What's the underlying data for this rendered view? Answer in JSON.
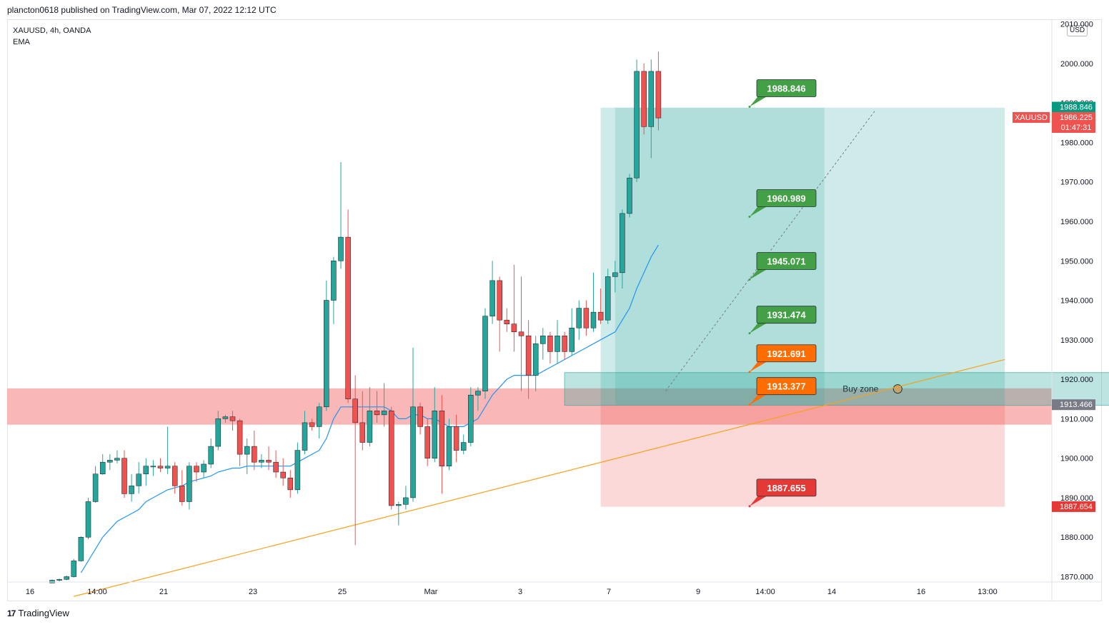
{
  "header": {
    "published": "plancton0618 published on TradingView.com, Mar 07, 2022 12:12 UTC"
  },
  "legend": {
    "symbol": "XAUUSD, 4h, OANDA",
    "indicator": "EMA"
  },
  "currency_button": "USD",
  "footer": {
    "logo": "17",
    "brand": "TradingView"
  },
  "colors": {
    "up": "#26a69a",
    "down": "#ef5350",
    "ema": "#2196f3",
    "trend": "#f7a21b",
    "zone_red": "#f8a5a5",
    "zone_teal": "#26a69a",
    "label_green": "#43a047",
    "label_orange": "#ff6d00",
    "label_red": "#e53935"
  },
  "chart_data": {
    "type": "candlestick",
    "symbol": "XAUUSD",
    "interval": "4h",
    "ylim": [
      1867,
      2010
    ],
    "y_ticks": [
      "1870.000",
      "1880.000",
      "1890.000",
      "1900.000",
      "1910.000",
      "1920.000",
      "1930.000",
      "1940.000",
      "1950.000",
      "1960.000",
      "1970.000",
      "1980.000",
      "1990.000",
      "2000.000",
      "2010.000"
    ],
    "x_ticks": [
      "16",
      "14:00",
      "21",
      "23",
      "25",
      "Mar",
      "3",
      "7",
      "9",
      "14:00",
      "14",
      "16",
      "13:00"
    ],
    "candles": [
      [
        1868.4,
        1869.1,
        1867.5,
        1869.3
      ],
      [
        1869.1,
        1869.3,
        1868.8,
        1869.5
      ],
      [
        1869.3,
        1870.0,
        1869.1,
        1870.3
      ],
      [
        1870.0,
        1874.0,
        1869.8,
        1874.5
      ],
      [
        1874.0,
        1880.0,
        1873.8,
        1880.2
      ],
      [
        1880.0,
        1889.0,
        1879.5,
        1890.0
      ],
      [
        1889.0,
        1896.0,
        1888.7,
        1898.0
      ],
      [
        1896.0,
        1899.0,
        1895.8,
        1901.0
      ],
      [
        1899.0,
        1899.5,
        1897.0,
        1901.0
      ],
      [
        1899.5,
        1900.0,
        1898.7,
        1902.0
      ],
      [
        1900.0,
        1891.0,
        1890.0,
        1902.0
      ],
      [
        1891.0,
        1893.0,
        1889.0,
        1896.0
      ],
      [
        1893.0,
        1896.0,
        1891.0,
        1899.0
      ],
      [
        1896.0,
        1898.0,
        1893.0,
        1900.0
      ],
      [
        1898.0,
        1898.0,
        1895.5,
        1899.5
      ],
      [
        1898.0,
        1897.5,
        1896.5,
        1900.0
      ],
      [
        1897.5,
        1898.0,
        1896.0,
        1908.0
      ],
      [
        1898.0,
        1893.0,
        1891.0,
        1899.0
      ],
      [
        1893.0,
        1889.0,
        1888.0,
        1897.0
      ],
      [
        1889.0,
        1898.0,
        1887.0,
        1899.0
      ],
      [
        1898.0,
        1896.5,
        1894.0,
        1899.0
      ],
      [
        1896.5,
        1898.5,
        1895.0,
        1899.5
      ],
      [
        1898.5,
        1903.0,
        1897.5,
        1905.0
      ],
      [
        1903.0,
        1910.0,
        1902.0,
        1912.0
      ],
      [
        1910.0,
        1910.5,
        1909.0,
        1911.0
      ],
      [
        1910.5,
        1909.5,
        1907.0,
        1912.0
      ],
      [
        1909.5,
        1901.0,
        1898.0,
        1910.0
      ],
      [
        1901.0,
        1903.0,
        1896.0,
        1905.0
      ],
      [
        1903.0,
        1899.0,
        1897.0,
        1907.0
      ],
      [
        1899.0,
        1899.5,
        1897.5,
        1901.0
      ],
      [
        1899.5,
        1899.0,
        1897.0,
        1903.0
      ],
      [
        1899.0,
        1896.5,
        1895.0,
        1902.0
      ],
      [
        1896.5,
        1895.0,
        1893.0,
        1900.0
      ],
      [
        1895.0,
        1892.0,
        1890.0,
        1897.0
      ],
      [
        1892.0,
        1902.0,
        1891.0,
        1904.0
      ],
      [
        1902.0,
        1909.0,
        1901.0,
        1912.0
      ],
      [
        1909.0,
        1908.0,
        1907.0,
        1910.0
      ],
      [
        1908.0,
        1913.0,
        1905.0,
        1914.0
      ],
      [
        1913.0,
        1940.0,
        1912.0,
        1945.0
      ],
      [
        1940.0,
        1950.0,
        1934.0,
        1951.0
      ],
      [
        1950.0,
        1956.0,
        1948.0,
        1975.0
      ],
      [
        1956.0,
        1915.0,
        1914.0,
        1963.0
      ],
      [
        1915.0,
        1909.0,
        1878.0,
        1921.0
      ],
      [
        1909.0,
        1904.0,
        1902.0,
        1917.0
      ],
      [
        1904.0,
        1912.0,
        1903.0,
        1918.0
      ],
      [
        1912.0,
        1911.0,
        1909.0,
        1917.0
      ],
      [
        1911.0,
        1912.0,
        1908.0,
        1919.0
      ],
      [
        1912.0,
        1888.0,
        1887.0,
        1913.0
      ],
      [
        1888.0,
        1888.3,
        1883.0,
        1889.0
      ],
      [
        1888.3,
        1890.0,
        1887.0,
        1893.0
      ],
      [
        1890.0,
        1913.0,
        1889.0,
        1928.0
      ],
      [
        1913.0,
        1908.0,
        1906.0,
        1914.0
      ],
      [
        1908.0,
        1900.0,
        1898.0,
        1910.0
      ],
      [
        1900.0,
        1912.0,
        1899.0,
        1918.0
      ],
      [
        1912.0,
        1898.0,
        1891.0,
        1916.0
      ],
      [
        1898.0,
        1908.0,
        1897.0,
        1910.0
      ],
      [
        1908.0,
        1902.0,
        1899.0,
        1911.0
      ],
      [
        1902.0,
        1904.0,
        1901.0,
        1906.0
      ],
      [
        1904.0,
        1916.0,
        1903.0,
        1918.0
      ],
      [
        1916.0,
        1917.0,
        1912.0,
        1918.0
      ],
      [
        1917.0,
        1936.0,
        1915.0,
        1938.0
      ],
      [
        1936.0,
        1945.0,
        1934.0,
        1950.0
      ],
      [
        1945.0,
        1935.0,
        1927.0,
        1946.0
      ],
      [
        1935.0,
        1934.0,
        1932.0,
        1938.0
      ],
      [
        1934.0,
        1932.0,
        1927.0,
        1949.0
      ],
      [
        1932.0,
        1931.0,
        1917.0,
        1946.0
      ],
      [
        1931.0,
        1921.0,
        1915.0,
        1935.0
      ],
      [
        1921.0,
        1929.0,
        1917.0,
        1931.0
      ],
      [
        1929.0,
        1931.0,
        1925.0,
        1933.0
      ],
      [
        1931.0,
        1927.0,
        1924.0,
        1932.0
      ],
      [
        1927.0,
        1931.0,
        1924.0,
        1935.0
      ],
      [
        1931.0,
        1927.0,
        1925.0,
        1932.0
      ],
      [
        1927.0,
        1933.0,
        1926.0,
        1938.0
      ],
      [
        1933.0,
        1938.0,
        1930.0,
        1940.0
      ],
      [
        1938.0,
        1933.0,
        1931.0,
        1940.0
      ],
      [
        1933.0,
        1937.0,
        1932.0,
        1947.0
      ],
      [
        1937.0,
        1935.0,
        1934.0,
        1943.0
      ],
      [
        1935.0,
        1946.0,
        1934.0,
        1948.0
      ],
      [
        1946.0,
        1947.0,
        1942.0,
        1950.0
      ],
      [
        1947.0,
        1962.0,
        1943.0,
        1963.0
      ],
      [
        1962.0,
        1971.0,
        1961.0,
        1972.0
      ],
      [
        1971.0,
        1998.0,
        1970.0,
        2001.0
      ],
      [
        1998.0,
        1984.0,
        1982.0,
        2000.0
      ],
      [
        1984.0,
        1998.0,
        1976.0,
        2001.0
      ],
      [
        1998.0,
        1986.2,
        1983.0,
        2003.0
      ]
    ],
    "ema_series_name": "EMA",
    "ema_values": [
      1860,
      1862,
      1864,
      1868,
      1871,
      1874,
      1877,
      1880,
      1882,
      1884,
      1885,
      1886,
      1887,
      1889,
      1890,
      1891,
      1892,
      1892.5,
      1893,
      1894,
      1894.5,
      1895,
      1895.5,
      1896.5,
      1897,
      1897.5,
      1897.5,
      1898,
      1898,
      1898,
      1898,
      1898,
      1898,
      1898,
      1899,
      1900,
      1901,
      1902,
      1905,
      1910,
      1913,
      1913,
      1913,
      1913,
      1913,
      1913,
      1913,
      1912,
      1910,
      1910,
      1911,
      1911,
      1910,
      1910,
      1909,
      1908,
      1908,
      1908,
      1909,
      1910,
      1913,
      1916,
      1918,
      1920,
      1921,
      1921,
      1921,
      1921,
      1922,
      1923,
      1924,
      1925,
      1926,
      1927,
      1928,
      1929,
      1930,
      1931,
      1932,
      1935,
      1938,
      1943,
      1947,
      1951,
      1954
    ],
    "trend_line": {
      "from": [
        3,
        1865
      ],
      "to": [
        132,
        1925
      ]
    },
    "projection_line": {
      "from": [
        85,
        1917
      ],
      "to": [
        114,
        1988
      ]
    },
    "zones": [
      {
        "name": "resistance-support",
        "y1": 1908.5,
        "y2": 1917.7
      },
      {
        "name": "buy-zone",
        "label": "Buy zone",
        "y1": 1913.4,
        "y2": 1921.7,
        "x1": 71,
        "x2": 155
      },
      {
        "name": "profit-area",
        "y1": 1913.4,
        "y2": 1988.8,
        "x1": 76,
        "x2": 132
      },
      {
        "name": "loss-area",
        "y1": 1887.7,
        "y2": 1913.4,
        "x1": 76,
        "x2": 132
      }
    ],
    "price_labels": [
      {
        "text": "1988.846",
        "value": 1988.846,
        "color": "green"
      },
      {
        "text": "1960.989",
        "value": 1960.989,
        "color": "green"
      },
      {
        "text": "1945.071",
        "value": 1945.071,
        "color": "green"
      },
      {
        "text": "1931.474",
        "value": 1931.474,
        "color": "green"
      },
      {
        "text": "1921.691",
        "value": 1921.691,
        "color": "orange"
      },
      {
        "text": "1913.377",
        "value": 1913.377,
        "color": "orange"
      },
      {
        "text": "1887.655",
        "value": 1887.655,
        "color": "red"
      }
    ],
    "axis_badges": [
      {
        "text": "1988.846",
        "value": 1988.846,
        "bg": "#089981"
      },
      {
        "text": "XAUUSD",
        "value": 1986.225,
        "bg": "#ef5350",
        "side": "left"
      },
      {
        "text": "1986.225",
        "value": 1986.225,
        "bg": "#ef5350"
      },
      {
        "text": "01:47:31",
        "value": 1986.225,
        "bg": "#ef5350",
        "sub": true
      },
      {
        "text": "1913.466",
        "value": 1913.466,
        "bg": "#787b86"
      },
      {
        "text": "1887.654",
        "value": 1887.654,
        "bg": "#e53935"
      }
    ]
  }
}
